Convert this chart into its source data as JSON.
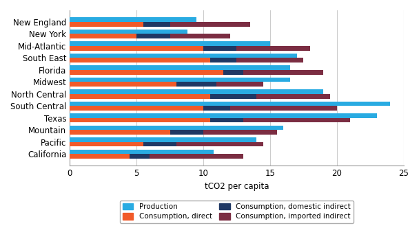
{
  "regions": [
    "California",
    "Pacific",
    "Mountain",
    "Texas",
    "South Central",
    "North Central",
    "Midwest",
    "Florida",
    "South East",
    "Mid-Atlantic",
    "New York",
    "New England"
  ],
  "production": [
    10.8,
    14.0,
    16.0,
    23.0,
    24.0,
    19.0,
    16.5,
    16.5,
    17.0,
    15.0,
    8.8,
    9.5
  ],
  "consumption_direct": [
    4.5,
    5.5,
    7.5,
    10.5,
    10.0,
    10.5,
    8.0,
    11.5,
    10.5,
    10.0,
    5.0,
    5.5
  ],
  "consumption_domestic_indirect": [
    1.5,
    2.5,
    2.5,
    2.5,
    2.0,
    3.5,
    3.0,
    1.5,
    2.0,
    2.5,
    2.5,
    2.0
  ],
  "consumption_imported_indirect": [
    7.0,
    6.5,
    5.5,
    8.0,
    8.0,
    5.5,
    3.5,
    6.0,
    5.0,
    5.5,
    4.5,
    6.0
  ],
  "colors": {
    "production": "#29ABE2",
    "consumption_direct": "#F15A29",
    "consumption_domestic_indirect": "#1F3864",
    "consumption_imported_indirect": "#7B2D42"
  },
  "xlabel": "tCO2 per capita",
  "xlim": [
    0,
    25
  ],
  "xticks": [
    0,
    5,
    10,
    15,
    20,
    25
  ],
  "bar_height": 0.38,
  "figsize": [
    6.08,
    3.48
  ],
  "dpi": 100
}
